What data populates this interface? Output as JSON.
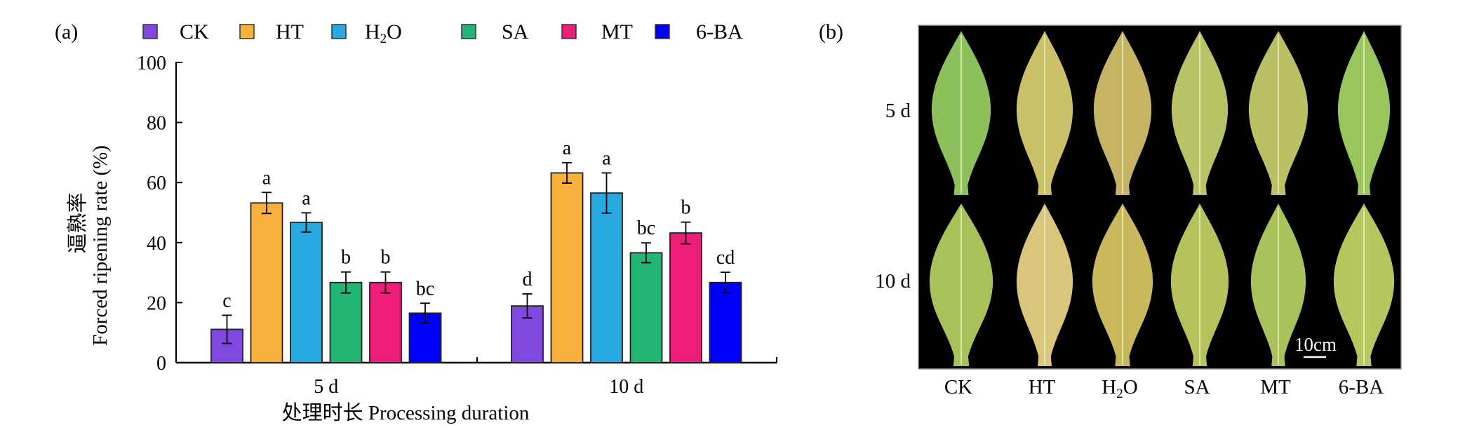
{
  "panels": {
    "a_label": "(a)",
    "b_label": "(b)"
  },
  "legend": [
    {
      "name": "CK",
      "sub": null,
      "color": "#7f48df"
    },
    {
      "name": "HT",
      "sub": null,
      "color": "#f9b03c"
    },
    {
      "name": "H2O",
      "display_main": "H",
      "display_sub": "2",
      "display_tail": "O",
      "color": "#29a9e1"
    },
    {
      "name": "SA",
      "sub": null,
      "color": "#22b573"
    },
    {
      "name": "MT",
      "sub": null,
      "color": "#ed1e79"
    },
    {
      "name": "6-BA",
      "sub": null,
      "color": "#0000ff"
    }
  ],
  "chart_data": {
    "type": "bar",
    "title": "",
    "xlabel": "处理时长 Processing duration",
    "ylabel_cn": "逼熟率",
    "ylabel": "Forced ripening rate (%)",
    "ylim": [
      0,
      100
    ],
    "yticks": [
      0,
      20,
      40,
      60,
      80,
      100
    ],
    "categories": [
      "5 d",
      "10 d"
    ],
    "legend_position": "top",
    "grid": false,
    "series": [
      {
        "name": "CK",
        "color": "#7f48df",
        "values": [
          11.1,
          18.9
        ],
        "errors": [
          4.7,
          4.0
        ],
        "letters": [
          "c",
          "d"
        ]
      },
      {
        "name": "HT",
        "color": "#f9b03c",
        "values": [
          53.2,
          63.2
        ],
        "errors": [
          3.5,
          3.4
        ],
        "letters": [
          "a",
          "a"
        ]
      },
      {
        "name": "H2O",
        "color": "#29a9e1",
        "values": [
          46.7,
          56.5
        ],
        "errors": [
          3.2,
          6.7
        ],
        "letters": [
          "a",
          "a"
        ]
      },
      {
        "name": "SA",
        "color": "#22b573",
        "values": [
          26.7,
          36.6
        ],
        "errors": [
          3.5,
          3.3
        ],
        "letters": [
          "b",
          "bc"
        ]
      },
      {
        "name": "MT",
        "color": "#ed1e79",
        "values": [
          26.7,
          43.2
        ],
        "errors": [
          3.5,
          3.6
        ],
        "letters": [
          "b",
          "b"
        ]
      },
      {
        "name": "6-BA",
        "color": "#0000ff",
        "values": [
          16.5,
          26.7
        ],
        "errors": [
          3.3,
          3.4
        ],
        "letters": [
          "bc",
          "cd"
        ]
      }
    ]
  },
  "photo": {
    "row_labels": [
      "5 d",
      "10 d"
    ],
    "column_labels": [
      {
        "main": "CK"
      },
      {
        "main": "HT"
      },
      {
        "main": "H",
        "sub": "2",
        "tail": "O"
      },
      {
        "main": "SA"
      },
      {
        "main": "MT"
      },
      {
        "main": "6-BA"
      }
    ],
    "scale_bar_label": "10cm",
    "background_color": "#000000",
    "leaf_colors": {
      "5 d": [
        "#8cc05a",
        "#c9c068",
        "#c4b464",
        "#b9c265",
        "#bcc065",
        "#98c55c"
      ],
      "10 d": [
        "#a8c25a",
        "#d9c57c",
        "#c9b85c",
        "#b7c25c",
        "#a9c25c",
        "#b5c860"
      ]
    }
  }
}
